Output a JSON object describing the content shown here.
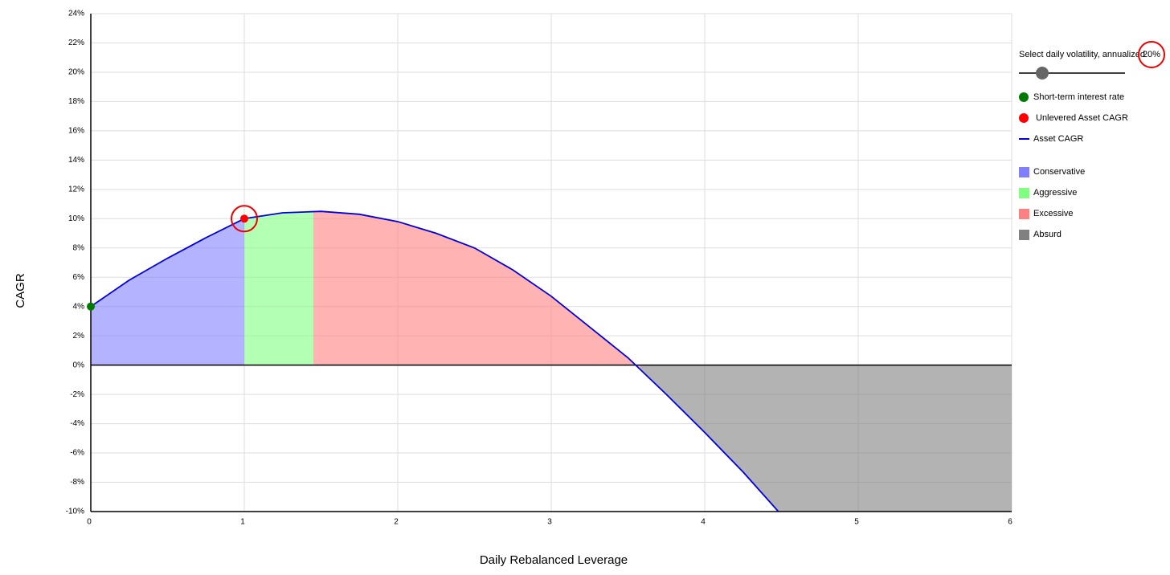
{
  "chart_data": {
    "type": "line",
    "y_axis_label": "CAGR",
    "x_axis_label": "Daily Rebalanced Leverage",
    "xlim": [
      0,
      6
    ],
    "xticks": [
      0,
      1,
      2,
      3,
      4,
      5,
      6
    ],
    "ylim": [
      -10,
      24
    ],
    "yticks": [
      {
        "value": -10,
        "label": "-10%"
      },
      {
        "value": -8,
        "label": "-8%"
      },
      {
        "value": -6,
        "label": "-6%"
      },
      {
        "value": -4,
        "label": "-4%"
      },
      {
        "value": -2,
        "label": "-2%"
      },
      {
        "value": 0,
        "label": "0%"
      },
      {
        "value": 2,
        "label": "2%"
      },
      {
        "value": 4,
        "label": "4%"
      },
      {
        "value": 6,
        "label": "6%"
      },
      {
        "value": 8,
        "label": "8%"
      },
      {
        "value": 10,
        "label": "10%"
      },
      {
        "value": 12,
        "label": "12%"
      },
      {
        "value": 14,
        "label": "14%"
      },
      {
        "value": 16,
        "label": "16%"
      },
      {
        "value": 18,
        "label": "18%"
      },
      {
        "value": 20,
        "label": "20%"
      },
      {
        "value": 22,
        "label": "22%"
      },
      {
        "value": 24,
        "label": "24%"
      }
    ],
    "grid": true,
    "x": [
      0,
      0.25,
      0.5,
      0.75,
      1,
      1.25,
      1.5,
      1.75,
      2,
      2.25,
      2.5,
      2.75,
      3,
      3.25,
      3.5,
      3.75,
      4,
      4.25,
      4.48
    ],
    "series": [
      {
        "name": "Asset CAGR",
        "color": "#0000dd",
        "values": [
          4,
          5.8,
          7.3,
          8.7,
          10,
          10.4,
          10.5,
          10.3,
          9.8,
          9.0,
          8.0,
          6.5,
          4.7,
          2.6,
          0.5,
          -2.0,
          -4.6,
          -7.3,
          -10
        ]
      }
    ],
    "points": [
      {
        "name": "Short-term interest rate",
        "color": "#007a00",
        "x": 0,
        "value": 4
      },
      {
        "name": "Unlevered Asset CAGR",
        "color": "#ff0000",
        "x": 1,
        "value": 10
      }
    ],
    "regions": [
      {
        "name": "Conservative",
        "color": "#8080ff",
        "range": [
          0,
          1
        ]
      },
      {
        "name": "Aggressive",
        "color": "#80ff80",
        "range": [
          1,
          1.45
        ]
      },
      {
        "name": "Excessive",
        "color": "#ff8080",
        "range": [
          1.45,
          3.58
        ]
      },
      {
        "name": "Absurd",
        "color": "#808080",
        "range": [
          3.58,
          6
        ]
      }
    ],
    "volatility": {
      "label": "Select daily volatility, annualized",
      "value": 20,
      "value_label": "20%"
    }
  }
}
